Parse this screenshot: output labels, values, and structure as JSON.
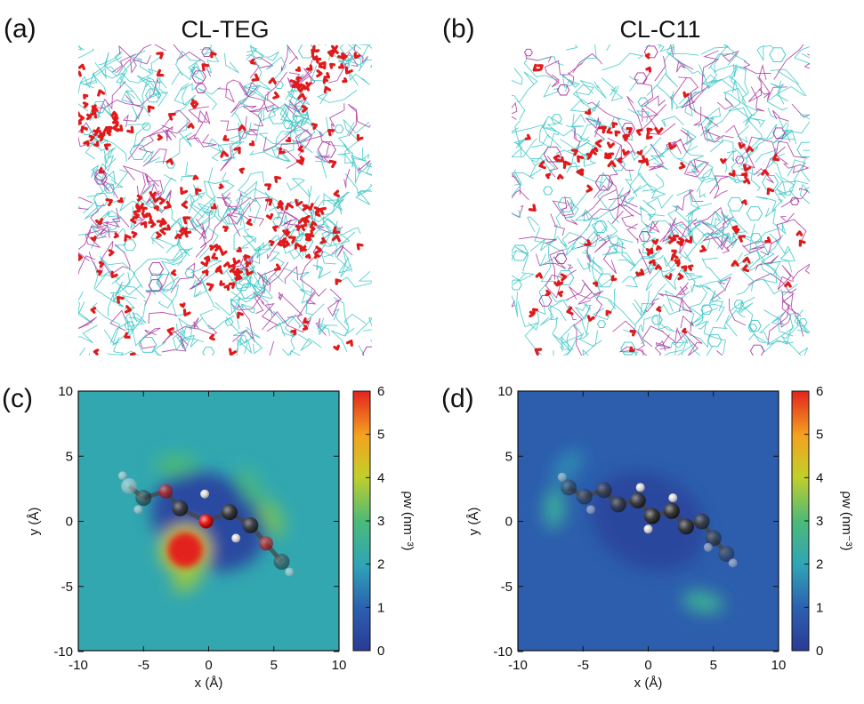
{
  "figure": {
    "panels": [
      {
        "letter": "(a)",
        "title": "CL-TEG"
      },
      {
        "letter": "(b)",
        "title": "CL-C11"
      },
      {
        "letter": "(c)"
      },
      {
        "letter": "(d)"
      }
    ],
    "colors": {
      "network_cyan": "#3cc6c6",
      "network_magenta": "#a8329c",
      "water_red": "#e01a1a",
      "map_c_background": "#33b88a",
      "map_d_background": "#2e5fa8"
    }
  },
  "chart_data": [
    {
      "type": "heatmap",
      "panel": "(c)",
      "xlabel": "x (Å)",
      "ylabel": "y (Å)",
      "xlim": [
        -10,
        10
      ],
      "ylim": [
        -10,
        10
      ],
      "xticks": [
        -10,
        -5,
        0,
        5,
        10
      ],
      "yticks": [
        -10,
        -5,
        0,
        5,
        10
      ],
      "colorbar": {
        "label": "ρw (nm⁻³)",
        "min": 0,
        "max": 6,
        "ticks": [
          0,
          1,
          2,
          3,
          4,
          5,
          6
        ],
        "colormap": "jet"
      },
      "background_level": 2.1,
      "hotspots": [
        {
          "x": -1.8,
          "y": -2.2,
          "value": 6.0
        },
        {
          "x": -1.5,
          "y": -4.2,
          "value": 3.6
        },
        {
          "x": 4.8,
          "y": 0.3,
          "value": 3.3
        },
        {
          "x": -2.5,
          "y": 4.3,
          "value": 3.0
        },
        {
          "x": 3.2,
          "y": 2.7,
          "value": 2.8
        }
      ],
      "depleted_zone_value": 0.4,
      "molecule": "TEG"
    },
    {
      "type": "heatmap",
      "panel": "(d)",
      "xlabel": "x (Å)",
      "ylabel": "y (Å)",
      "xlim": [
        -10,
        10
      ],
      "ylim": [
        -10,
        10
      ],
      "xticks": [
        -10,
        -5,
        0,
        5,
        10
      ],
      "yticks": [
        -10,
        -5,
        0,
        5,
        10
      ],
      "colorbar": {
        "label": "ρw (nm⁻³)",
        "min": 0,
        "max": 6,
        "ticks": [
          0,
          1,
          2,
          3,
          4,
          5,
          6
        ],
        "colormap": "jet"
      },
      "background_level": 0.9,
      "hotspots": [
        {
          "x": -7.2,
          "y": 1.0,
          "value": 2.4
        },
        {
          "x": 4.2,
          "y": -6.2,
          "value": 2.5
        },
        {
          "x": -6.2,
          "y": 4.2,
          "value": 1.6
        }
      ],
      "depleted_zone_value": 0.3,
      "molecule": "C11"
    }
  ]
}
